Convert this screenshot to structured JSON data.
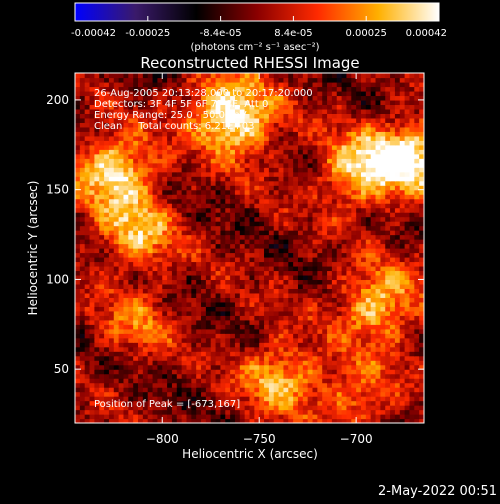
{
  "colorbar": {
    "ticks": [
      "-0.00042",
      "-0.00025",
      "-8.4e-05",
      "8.4e-05",
      "0.00025",
      "0.00042"
    ],
    "units_line": "(photons cm⁻² s⁻¹ asec⁻²)",
    "stops": [
      "#0000ff",
      "#3a1a6a",
      "#000000",
      "#8a0000",
      "#ff2a00",
      "#ffb000",
      "#ffffff"
    ]
  },
  "chart_data": {
    "type": "heatmap",
    "title": "Reconstructed RHESSI Image",
    "xlabel": "Heliocentric X (arcsec)",
    "ylabel": "Heliocentric Y (arcsec)",
    "xlim": [
      -845,
      -665
    ],
    "ylim": [
      20,
      215
    ],
    "xticks": [
      -800,
      -750,
      -700
    ],
    "yticks": [
      50,
      100,
      150,
      200
    ],
    "colormap": "blue-purple-black-red-yellow-white",
    "value_range": [
      -0.00042,
      0.00042
    ],
    "annotations": [
      "26-Aug-2005 20:13:28.000 to 20:17:20.000",
      "Detectors: 3F 4F 5F 6F 7F 8F, Att 0",
      "Energy Range: 25.0 - 50.0 keV",
      "Clean     Total counts: 6.21E+03"
    ],
    "peak_label": "Position of Peak = [-673,167]",
    "peak": [
      -673,
      167
    ],
    "bright_regions": [
      {
        "x": -825,
        "y": 160,
        "intensity": 0.0004
      },
      {
        "x": -815,
        "y": 125,
        "intensity": 0.0003
      },
      {
        "x": -770,
        "y": 195,
        "intensity": 0.00028
      },
      {
        "x": -760,
        "y": 185,
        "intensity": 0.00026
      },
      {
        "x": -700,
        "y": 160,
        "intensity": 0.00035
      },
      {
        "x": -673,
        "y": 167,
        "intensity": 0.00042
      },
      {
        "x": -690,
        "y": 85,
        "intensity": 0.00035
      },
      {
        "x": -740,
        "y": 45,
        "intensity": 0.0003
      },
      {
        "x": -700,
        "y": 35,
        "intensity": 0.00022
      },
      {
        "x": -815,
        "y": 75,
        "intensity": 0.00018
      }
    ]
  },
  "footer": {
    "date_stamp": "2-May-2022 00:51"
  }
}
